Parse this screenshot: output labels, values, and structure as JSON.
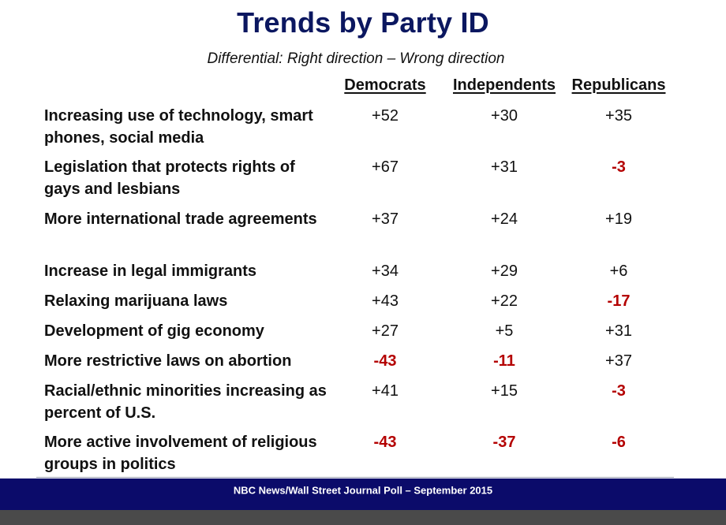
{
  "chart_data": {
    "type": "table",
    "title": "Trends by Party ID",
    "subtitle": "Differential: Right direction – Wrong direction",
    "columns": [
      "Democrats",
      "Independents",
      "Republicans"
    ],
    "rows": [
      {
        "label": "Increasing use of technology, smart phones, social media",
        "values": [
          "+52",
          "+30",
          "+35"
        ]
      },
      {
        "label": "Legislation that protects rights of gays and lesbians",
        "values": [
          "+67",
          "+31",
          "-3"
        ]
      },
      {
        "label": "More international trade agreements",
        "values": [
          "+37",
          "+24",
          "+19"
        ]
      },
      {
        "label": "Increase in legal immigrants",
        "values": [
          "+34",
          "+29",
          "+6"
        ]
      },
      {
        "label": "Relaxing marijuana laws",
        "values": [
          "+43",
          "+22",
          "-17"
        ]
      },
      {
        "label": "Development of gig economy",
        "values": [
          "+27",
          "+5",
          "+31"
        ]
      },
      {
        "label": "More restrictive laws on abortion",
        "values": [
          "-43",
          "-11",
          "+37"
        ]
      },
      {
        "label": "Racial/ethnic minorities increasing as percent of U.S.",
        "values": [
          "+41",
          "+15",
          "-3"
        ]
      },
      {
        "label": "More active involvement of religious groups in politics",
        "values": [
          "-43",
          "-37",
          "-6"
        ]
      }
    ]
  },
  "footer": {
    "source": "NBC News/Wall Street Journal Poll – September 2015"
  },
  "colors": {
    "title": "#0b1760",
    "negative": "#b40000",
    "footer_bar": "#0b0b6a",
    "bottom_strip": "#4a4a4a"
  }
}
